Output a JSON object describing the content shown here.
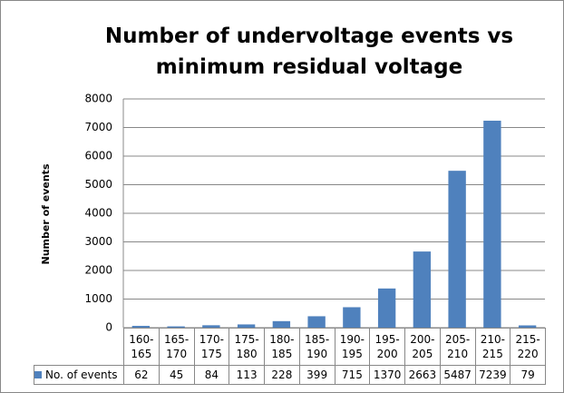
{
  "chart_data": {
    "type": "bar",
    "title": "Number of undervoltage events vs minimum residual voltage",
    "y_label": "Number of events",
    "categories": [
      "160-165",
      "165-170",
      "170-175",
      "175-180",
      "180-185",
      "185-190",
      "190-195",
      "195-200",
      "200-205",
      "205-210",
      "210-215",
      "215-220"
    ],
    "series": [
      {
        "name": "No. of events",
        "color": "#4f81bd",
        "values": [
          62,
          45,
          84,
          113,
          228,
          399,
          715,
          1370,
          2663,
          5487,
          7239,
          79
        ]
      }
    ],
    "ylim": [
      0,
      8000
    ],
    "yticks": [
      0,
      1000,
      2000,
      3000,
      4000,
      5000,
      6000,
      7000,
      8000
    ],
    "grid": true
  }
}
